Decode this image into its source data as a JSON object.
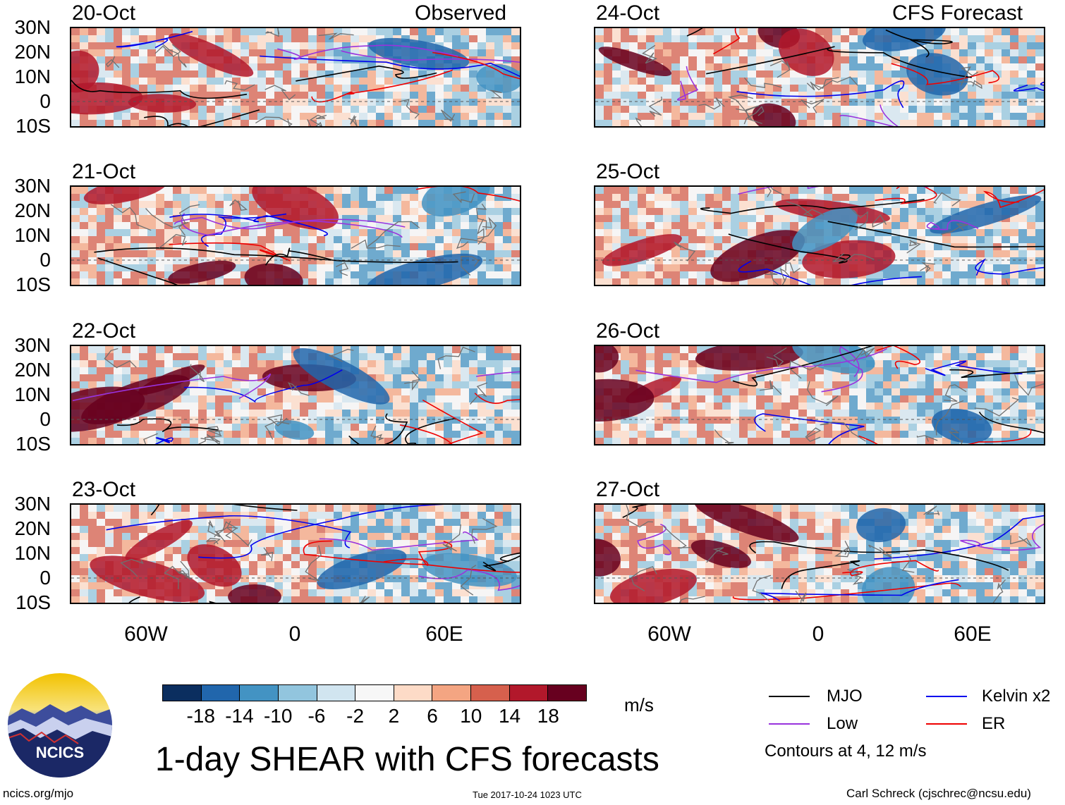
{
  "headers": {
    "observed": "Observed",
    "forecast": "CFS Forecast"
  },
  "panels": [
    {
      "date": "20-Oct",
      "group": "observed"
    },
    {
      "date": "21-Oct",
      "group": "observed"
    },
    {
      "date": "22-Oct",
      "group": "observed"
    },
    {
      "date": "23-Oct",
      "group": "observed"
    },
    {
      "date": "24-Oct",
      "group": "forecast"
    },
    {
      "date": "25-Oct",
      "group": "forecast"
    },
    {
      "date": "26-Oct",
      "group": "forecast"
    },
    {
      "date": "27-Oct",
      "group": "forecast"
    }
  ],
  "lat_labels": [
    "30N",
    "20N",
    "10N",
    "0",
    "10S"
  ],
  "lon_labels": [
    "60W",
    "0",
    "60E"
  ],
  "colorbar": {
    "colors": [
      "#0b2e5f",
      "#2166ac",
      "#4393c3",
      "#92c5de",
      "#d1e5f0",
      "#f7f7f7",
      "#fddbc7",
      "#f4a582",
      "#d6604d",
      "#b2182b",
      "#67001f"
    ],
    "labels": [
      "-18",
      "-14",
      "-10",
      "-6",
      "-2",
      "2",
      "6",
      "10",
      "14",
      "18"
    ],
    "units": "m/s"
  },
  "legend": {
    "items": [
      {
        "label": "MJO",
        "color": "#000000"
      },
      {
        "label": "Kelvin x2",
        "color": "#0000ee"
      },
      {
        "label": "Low",
        "color": "#9933dd"
      },
      {
        "label": "ER",
        "color": "#ee0000"
      }
    ],
    "contours_note": "Contours at 4, 12 m/s"
  },
  "logo_text": "NCICS",
  "title": "1-day SHEAR with CFS forecasts",
  "footer": {
    "url": "ncics.org/mjo",
    "timestamp": "Tue 2017-10-24 1023 UTC",
    "credit": "Carl Schreck (cjschrec@ncsu.edu)"
  }
}
